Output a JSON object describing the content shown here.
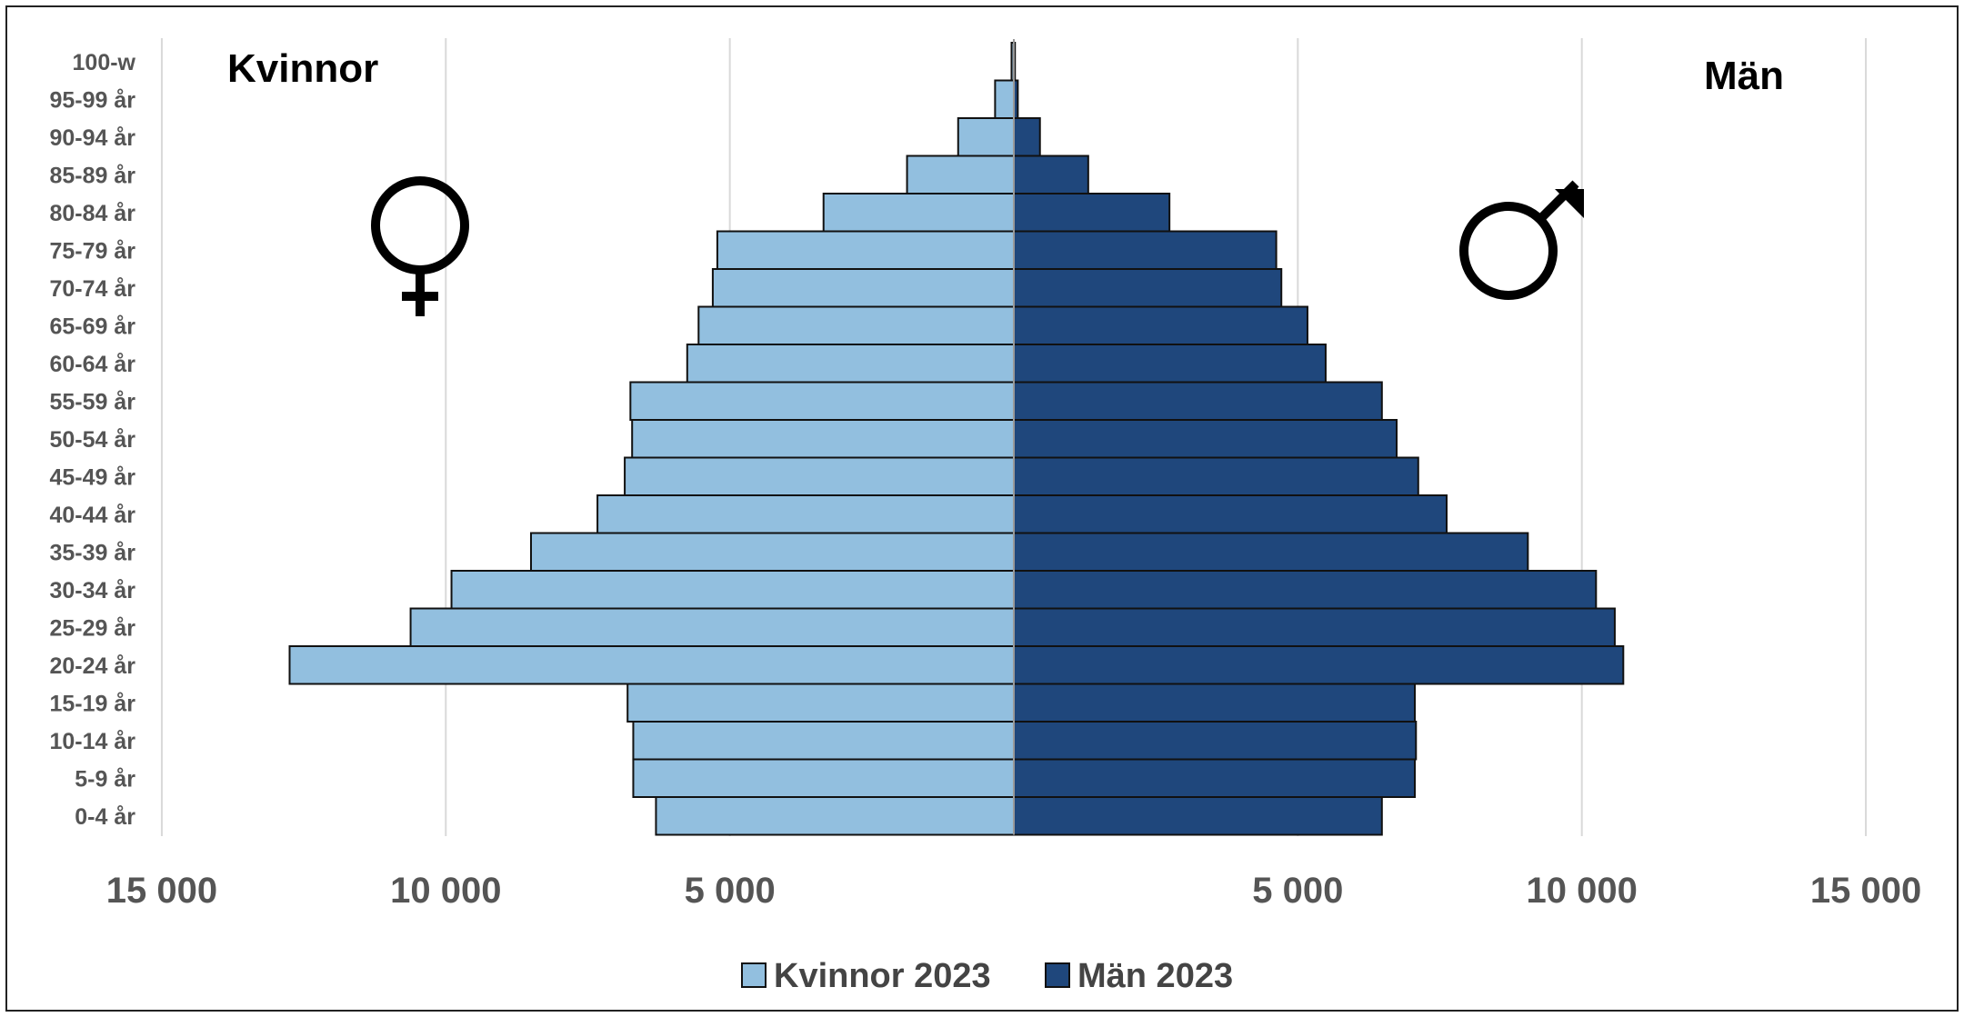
{
  "chart_data": {
    "type": "bar",
    "orientation": "horizontal",
    "subtype": "population-pyramid",
    "categories": [
      "0-4 år",
      "5-9 år",
      "10-14 år",
      "15-19 år",
      "20-24 år",
      "25-29 år",
      "30-34 år",
      "35-39 år",
      "40-44 år",
      "45-49 år",
      "50-54 år",
      "55-59 år",
      "60-64 år",
      "65-69 år",
      "70-74 år",
      "75-79 år",
      "80-84 år",
      "85-89 år",
      "90-94 år",
      "95-99 år",
      "100-w"
    ],
    "series": [
      {
        "name": "Kvinnor 2023",
        "side": "left",
        "color": "#92bfdf",
        "values": [
          6300,
          6700,
          6700,
          6800,
          12750,
          10620,
          9900,
          8500,
          7330,
          6850,
          6720,
          6750,
          5750,
          5550,
          5300,
          5220,
          3350,
          1880,
          980,
          330,
          40
        ]
      },
      {
        "name": "Män 2023",
        "side": "right",
        "color": "#1f477c",
        "values": [
          6480,
          7060,
          7080,
          7060,
          10730,
          10580,
          10250,
          9050,
          7620,
          7120,
          6740,
          6480,
          5490,
          5170,
          4710,
          4620,
          2740,
          1310,
          460,
          70,
          20
        ]
      }
    ],
    "x_ticks": [
      "15 000",
      "10 000",
      "5 000",
      "5 000",
      "10 000",
      "15 000"
    ],
    "xlim": [
      -15000,
      15000
    ],
    "grid": "vertical",
    "side_labels": {
      "left": "Kvinnor",
      "right": "Män"
    },
    "symbols": {
      "left": "female-symbol-icon",
      "right": "male-symbol-icon"
    },
    "legend": {
      "position": "bottom",
      "items": [
        "Kvinnor 2023",
        "Män 2023"
      ]
    }
  }
}
